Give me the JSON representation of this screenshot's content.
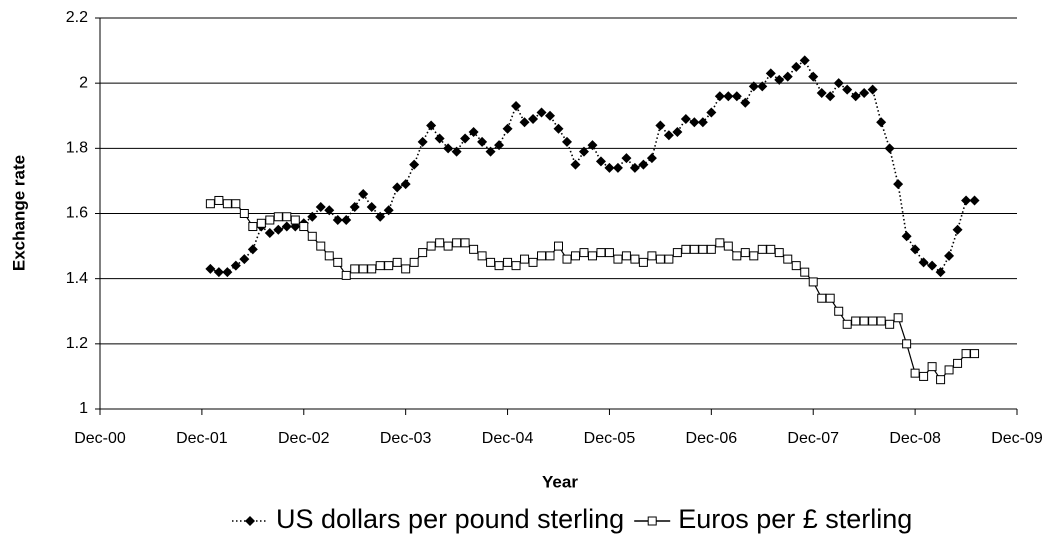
{
  "chart_data": {
    "type": "line",
    "xlabel": "Year",
    "ylabel": "Exchange rate",
    "x": [
      "2002-01",
      "2002-02",
      "2002-03",
      "2002-04",
      "2002-05",
      "2002-06",
      "2002-07",
      "2002-08",
      "2002-09",
      "2002-10",
      "2002-11",
      "2002-12",
      "2003-01",
      "2003-02",
      "2003-03",
      "2003-04",
      "2003-05",
      "2003-06",
      "2003-07",
      "2003-08",
      "2003-09",
      "2003-10",
      "2003-11",
      "2003-12",
      "2004-01",
      "2004-02",
      "2004-03",
      "2004-04",
      "2004-05",
      "2004-06",
      "2004-07",
      "2004-08",
      "2004-09",
      "2004-10",
      "2004-11",
      "2004-12",
      "2005-01",
      "2005-02",
      "2005-03",
      "2005-04",
      "2005-05",
      "2005-06",
      "2005-07",
      "2005-08",
      "2005-09",
      "2005-10",
      "2005-11",
      "2005-12",
      "2006-01",
      "2006-02",
      "2006-03",
      "2006-04",
      "2006-05",
      "2006-06",
      "2006-07",
      "2006-08",
      "2006-09",
      "2006-10",
      "2006-11",
      "2006-12",
      "2007-01",
      "2007-02",
      "2007-03",
      "2007-04",
      "2007-05",
      "2007-06",
      "2007-07",
      "2007-08",
      "2007-09",
      "2007-10",
      "2007-11",
      "2007-12",
      "2008-01",
      "2008-02",
      "2008-03",
      "2008-04",
      "2008-05",
      "2008-06",
      "2008-07",
      "2008-08",
      "2008-09",
      "2008-10",
      "2008-11",
      "2008-12",
      "2009-01",
      "2009-02",
      "2009-03",
      "2009-04",
      "2009-05",
      "2009-06",
      "2009-07"
    ],
    "series": [
      {
        "name": "US dollars per pound sterling",
        "color": "#000000",
        "dash": "dotted",
        "marker": "diamond",
        "values": [
          1.43,
          1.42,
          1.42,
          1.44,
          1.46,
          1.49,
          1.56,
          1.54,
          1.55,
          1.56,
          1.56,
          1.57,
          1.59,
          1.62,
          1.61,
          1.58,
          1.58,
          1.62,
          1.66,
          1.62,
          1.59,
          1.61,
          1.68,
          1.69,
          1.75,
          1.82,
          1.87,
          1.83,
          1.8,
          1.79,
          1.83,
          1.85,
          1.82,
          1.79,
          1.81,
          1.86,
          1.93,
          1.88,
          1.89,
          1.91,
          1.9,
          1.86,
          1.82,
          1.75,
          1.79,
          1.81,
          1.76,
          1.74,
          1.74,
          1.77,
          1.74,
          1.75,
          1.77,
          1.87,
          1.84,
          1.85,
          1.89,
          1.88,
          1.88,
          1.91,
          1.96,
          1.96,
          1.96,
          1.94,
          1.99,
          1.99,
          2.03,
          2.01,
          2.02,
          2.05,
          2.07,
          2.02,
          1.97,
          1.96,
          2.0,
          1.98,
          1.96,
          1.97,
          1.98,
          1.88,
          1.8,
          1.69,
          1.53,
          1.49,
          1.45,
          1.44,
          1.42,
          1.47,
          1.55,
          1.64,
          1.64
        ]
      },
      {
        "name": "Euros per £ sterling",
        "color": "#000000",
        "dash": "solid",
        "marker": "square",
        "values": [
          1.63,
          1.64,
          1.63,
          1.63,
          1.6,
          1.56,
          1.57,
          1.58,
          1.59,
          1.59,
          1.58,
          1.56,
          1.53,
          1.5,
          1.47,
          1.45,
          1.41,
          1.43,
          1.43,
          1.43,
          1.44,
          1.44,
          1.45,
          1.43,
          1.45,
          1.48,
          1.5,
          1.51,
          1.5,
          1.51,
          1.51,
          1.49,
          1.47,
          1.45,
          1.44,
          1.45,
          1.44,
          1.46,
          1.45,
          1.47,
          1.47,
          1.5,
          1.46,
          1.47,
          1.48,
          1.47,
          1.48,
          1.48,
          1.46,
          1.47,
          1.46,
          1.45,
          1.47,
          1.46,
          1.46,
          1.48,
          1.49,
          1.49,
          1.49,
          1.49,
          1.51,
          1.5,
          1.47,
          1.48,
          1.47,
          1.49,
          1.49,
          1.48,
          1.46,
          1.44,
          1.42,
          1.39,
          1.34,
          1.34,
          1.3,
          1.26,
          1.27,
          1.27,
          1.27,
          1.27,
          1.26,
          1.28,
          1.2,
          1.11,
          1.1,
          1.13,
          1.09,
          1.12,
          1.14,
          1.17,
          1.17
        ]
      }
    ],
    "xlim": [
      "2000-12",
      "2009-12"
    ],
    "xticks": [
      {
        "value": "2000-12",
        "label": "Dec-00"
      },
      {
        "value": "2001-12",
        "label": "Dec-01"
      },
      {
        "value": "2002-12",
        "label": "Dec-02"
      },
      {
        "value": "2003-12",
        "label": "Dec-03"
      },
      {
        "value": "2004-12",
        "label": "Dec-04"
      },
      {
        "value": "2005-12",
        "label": "Dec-05"
      },
      {
        "value": "2006-12",
        "label": "Dec-06"
      },
      {
        "value": "2007-12",
        "label": "Dec-07"
      },
      {
        "value": "2008-12",
        "label": "Dec-08"
      },
      {
        "value": "2009-12",
        "label": "Dec-09"
      }
    ],
    "ylim": [
      1,
      2.2
    ],
    "yticks": [
      1,
      {
        "value": 1.2,
        "label": "1.2"
      },
      {
        "value": 1.4,
        "label": "1.4"
      },
      {
        "value": 1.6,
        "label": "1.6"
      },
      {
        "value": 1.8,
        "label": "1.8"
      },
      2,
      {
        "value": 2.2,
        "label": "2.2"
      }
    ],
    "grid": true,
    "legend": "bottom"
  }
}
